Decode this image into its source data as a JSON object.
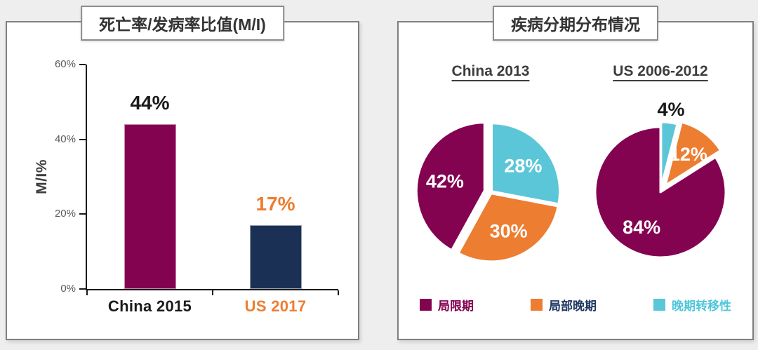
{
  "colors": {
    "background": "#eeeeef",
    "panel_border": "#7f7f7f",
    "magenta": "#840351",
    "navy_bar": "#1B3055",
    "orange": "#ED7D31",
    "cyan": "#5BC6D8",
    "legend_navy_text": "#1F3864",
    "axis_text_gray": "#595959"
  },
  "left_panel": {
    "title": "死亡率/发病率比值(M/I)"
  },
  "right_panel": {
    "title": "疾病分期分布情况",
    "legend": [
      {
        "slug": "localized",
        "label": "局限期",
        "swatch": "#840351",
        "text_color": "#840351"
      },
      {
        "slug": "locally-advanced",
        "label": "局部晚期",
        "swatch": "#ED7D31",
        "text_color": "#1F3864"
      },
      {
        "slug": "advanced-metastatic",
        "label": "晚期转移性",
        "swatch": "#5BC6D8",
        "text_color": "#4EC7DB"
      }
    ]
  },
  "chart_data": [
    {
      "id": "mi-ratio-bar-chart",
      "type": "bar",
      "title": "死亡率/发病率比值(M/I)",
      "ylabel": "M/I%",
      "ylim": [
        0,
        60
      ],
      "yticks": [
        {
          "value": 0,
          "label": "0%"
        },
        {
          "value": 20,
          "label": "20%"
        },
        {
          "value": 40,
          "label": "40%"
        },
        {
          "value": 60,
          "label": "60%"
        }
      ],
      "grid": false,
      "legend_position": "none",
      "categories": [
        "China 2015",
        "US 2017"
      ],
      "values": [
        44,
        17
      ],
      "bars": [
        {
          "slug": "china-2015",
          "category": "China 2015",
          "value": 44,
          "value_label": "44%",
          "color": "#840351",
          "value_label_color": "#1a1a1a",
          "category_color": "#1a1a1a"
        },
        {
          "slug": "us-2017",
          "category": "US 2017",
          "value": 17,
          "value_label": "17%",
          "color": "#1B3055",
          "value_label_color": "#ED7D31",
          "category_color": "#ED7D31"
        }
      ],
      "axis_color": "#1a1a1a"
    },
    {
      "id": "pie-china-2013",
      "type": "pie",
      "title": "China 2013",
      "start_angle_deg": 0,
      "clockwise": true,
      "radius": 97,
      "labels": [
        "晚期转移性",
        "局部晚期",
        "局限期"
      ],
      "values": [
        28,
        30,
        42
      ],
      "slices": [
        {
          "slug": "advanced-metastatic",
          "name": "晚期转移性",
          "value": 28,
          "label": "28%",
          "color": "#5BC6D8",
          "label_color": "#ffffff",
          "explode": 2,
          "label_outside": false
        },
        {
          "slug": "locally-advanced",
          "name": "局部晚期",
          "value": 30,
          "label": "30%",
          "color": "#ED7D31",
          "label_color": "#ffffff",
          "explode": 2,
          "label_outside": false
        },
        {
          "slug": "localized",
          "name": "局限期",
          "value": 42,
          "label": "42%",
          "color": "#840351",
          "label_color": "#ffffff",
          "explode": 9,
          "label_outside": false
        }
      ]
    },
    {
      "id": "pie-us-2006-2012",
      "type": "pie",
      "title": "US 2006-2012",
      "start_angle_deg": 0,
      "clockwise": true,
      "radius": 93,
      "labels": [
        "晚期转移性",
        "局部晚期",
        "局限期"
      ],
      "values": [
        4,
        12,
        84
      ],
      "slices": [
        {
          "slug": "advanced-metastatic",
          "name": "晚期转移性",
          "value": 4,
          "label": "4%",
          "color": "#5BC6D8",
          "label_color": "#1a1a1a",
          "explode": 7,
          "label_outside": true
        },
        {
          "slug": "locally-advanced",
          "name": "局部晚期",
          "value": 12,
          "label": "12%",
          "color": "#ED7D31",
          "label_color": "#ffffff",
          "explode": 12,
          "label_outside": false
        },
        {
          "slug": "localized",
          "name": "局限期",
          "value": 84,
          "label": "84%",
          "color": "#840351",
          "label_color": "#ffffff",
          "explode": 0,
          "label_outside": false
        }
      ]
    }
  ]
}
